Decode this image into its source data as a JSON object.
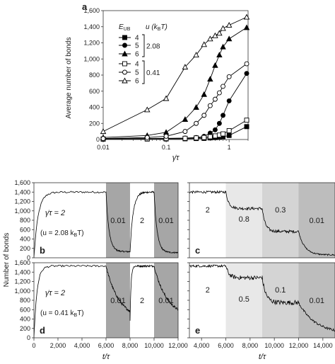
{
  "chart_data": [
    {
      "panel": "a",
      "type": "line",
      "xscale": "log",
      "xlim": [
        0.01,
        2
      ],
      "ylim": [
        0,
        1600
      ],
      "xlabel": "γ̇τ",
      "ylabel": "Average number of bonds",
      "xticks": [
        0.01,
        0.1,
        1
      ],
      "xtick_labels": [
        "0.01",
        "0.1",
        "1"
      ],
      "yticks": [
        0,
        200,
        400,
        600,
        800,
        1000,
        1200,
        1400,
        1600
      ],
      "ytick_labels": [
        "0",
        "200",
        "400",
        "600",
        "800",
        "1,000",
        "1,200",
        "1,400",
        "1,600"
      ],
      "legend": {
        "placement": "top-left",
        "header_e": "E",
        "header_e_sub": "UB",
        "header_u": "u (k",
        "header_u_sub": "B",
        "header_u_tail": "T)",
        "group_labels": [
          "2.08",
          "0.41"
        ]
      },
      "series": [
        {
          "name": "4",
          "group": "2.08",
          "marker": "square",
          "filled": true,
          "x": [
            0.01,
            0.05,
            0.1,
            0.2,
            0.3,
            0.4,
            0.5,
            0.6,
            0.7,
            0.8,
            1,
            1.9
          ],
          "y": [
            5,
            6,
            7,
            9,
            12,
            14,
            20,
            24,
            28,
            35,
            50,
            160
          ]
        },
        {
          "name": "5",
          "group": "2.08",
          "marker": "circle",
          "filled": true,
          "x": [
            0.01,
            0.05,
            0.1,
            0.2,
            0.3,
            0.4,
            0.5,
            0.6,
            0.7,
            0.8,
            1,
            1.9
          ],
          "y": [
            10,
            12,
            15,
            18,
            25,
            40,
            80,
            120,
            200,
            300,
            480,
            820
          ]
        },
        {
          "name": "6",
          "group": "2.08",
          "marker": "triangle",
          "filled": true,
          "x": [
            0.01,
            0.05,
            0.1,
            0.2,
            0.3,
            0.4,
            0.5,
            0.6,
            0.7,
            0.8,
            1,
            1.9
          ],
          "y": [
            25,
            50,
            90,
            250,
            400,
            560,
            750,
            920,
            1050,
            1150,
            1250,
            1390
          ]
        },
        {
          "name": "4",
          "group": "0.41",
          "marker": "square",
          "filled": false,
          "x": [
            0.01,
            0.05,
            0.1,
            0.2,
            0.3,
            0.4,
            0.5,
            0.6,
            0.7,
            0.8,
            1,
            1.9
          ],
          "y": [
            7,
            9,
            12,
            15,
            20,
            25,
            35,
            45,
            55,
            70,
            110,
            240
          ]
        },
        {
          "name": "5",
          "group": "0.41",
          "marker": "circle",
          "filled": false,
          "x": [
            0.01,
            0.05,
            0.1,
            0.2,
            0.3,
            0.4,
            0.5,
            0.6,
            0.7,
            0.8,
            1,
            1.9
          ],
          "y": [
            12,
            25,
            40,
            100,
            200,
            300,
            420,
            500,
            580,
            660,
            780,
            940
          ]
        },
        {
          "name": "6",
          "group": "0.41",
          "marker": "triangle",
          "filled": false,
          "x": [
            0.01,
            0.05,
            0.1,
            0.2,
            0.3,
            0.4,
            0.5,
            0.6,
            0.7,
            0.8,
            1,
            1.9
          ],
          "y": [
            100,
            370,
            510,
            900,
            1050,
            1180,
            1250,
            1290,
            1320,
            1380,
            1420,
            1520
          ]
        }
      ]
    },
    {
      "panel": "b",
      "type": "line",
      "xlim": [
        0,
        12000
      ],
      "ylim": [
        0,
        1600
      ],
      "yticks": [
        0,
        200,
        400,
        600,
        800,
        1000,
        1200,
        1400,
        1600
      ],
      "ytick_labels": [
        "0",
        "200",
        "400",
        "600",
        "800",
        "1,000",
        "1,200",
        "1,400",
        "1,600"
      ],
      "regions": [
        {
          "x0": 6000,
          "x1": 8000,
          "label": "0.01",
          "shade": "#a6a6a6"
        },
        {
          "x0": 8000,
          "x1": 10000,
          "label": "2",
          "shade": "none"
        },
        {
          "x0": 10000,
          "x1": 12000,
          "label": "0.01",
          "shade": "#a6a6a6"
        }
      ],
      "annotation_rate": "γ̇τ = 2",
      "annotation_u": "(u = 2.08 k",
      "annotation_u_sub": "B",
      "annotation_u_tail": "T)",
      "segments": [
        {
          "x0": 0,
          "x1": 6000,
          "kind": "rise",
          "from": 0,
          "to": 1400,
          "tau": 350,
          "noise": 20
        },
        {
          "x0": 6000,
          "x1": 8000,
          "kind": "decay",
          "from": 1400,
          "to": 130,
          "tau": 250,
          "noise": 15
        },
        {
          "x0": 8000,
          "x1": 10000,
          "kind": "rise",
          "from": 130,
          "to": 1400,
          "tau": 250,
          "noise": 20
        },
        {
          "x0": 10000,
          "x1": 12000,
          "kind": "decay",
          "from": 1400,
          "to": 110,
          "tau": 250,
          "noise": 15
        }
      ]
    },
    {
      "panel": "c",
      "type": "line",
      "xlim": [
        3000,
        15000
      ],
      "ylim": [
        0,
        1600
      ],
      "regions": [
        {
          "x0": 3000,
          "x1": 6000,
          "label": "2",
          "shade": "none"
        },
        {
          "x0": 6000,
          "x1": 9000,
          "label": "0.8",
          "shade": "#e8e8e8"
        },
        {
          "x0": 9000,
          "x1": 12000,
          "label": "0.3",
          "shade": "#d4d4d4"
        },
        {
          "x0": 12000,
          "x1": 15000,
          "label": "0.01",
          "shade": "#bdbdbd"
        }
      ],
      "segments": [
        {
          "x0": 3000,
          "x1": 6000,
          "kind": "flat",
          "from": 1400,
          "to": 1400,
          "tau": 100,
          "noise": 25
        },
        {
          "x0": 6000,
          "x1": 9000,
          "kind": "decay",
          "from": 1400,
          "to": 1050,
          "tau": 250,
          "noise": 30
        },
        {
          "x0": 9000,
          "x1": 12000,
          "kind": "decay",
          "from": 1050,
          "to": 560,
          "tau": 250,
          "noise": 30
        },
        {
          "x0": 12000,
          "x1": 15000,
          "kind": "decay",
          "from": 560,
          "to": 60,
          "tau": 500,
          "noise": 15
        }
      ]
    },
    {
      "panel": "d",
      "type": "line",
      "xlim": [
        0,
        12000
      ],
      "ylim": [
        0,
        1600
      ],
      "xlabel": "t/τ",
      "xticks": [
        0,
        2000,
        4000,
        6000,
        8000,
        10000,
        12000
      ],
      "xtick_labels": [
        "0",
        "2,000",
        "4,000",
        "6,000",
        "8,000",
        "10,000",
        "12,000"
      ],
      "yticks": [
        0,
        200,
        400,
        600,
        800,
        1000,
        1200,
        1400,
        1600
      ],
      "ytick_labels": [
        "0",
        "200",
        "400",
        "600",
        "800",
        "1,000",
        "1,200",
        "1,400",
        "1,600"
      ],
      "regions": [
        {
          "x0": 6000,
          "x1": 8000,
          "label": "0.01",
          "shade": "#a6a6a6"
        },
        {
          "x0": 8000,
          "x1": 10000,
          "label": "2",
          "shade": "none"
        },
        {
          "x0": 10000,
          "x1": 12000,
          "label": "0.01",
          "shade": "#a6a6a6"
        }
      ],
      "annotation_rate": "γ̇τ = 2",
      "annotation_u": "(u = 0.41 k",
      "annotation_u_sub": "B",
      "annotation_u_tail": "T)",
      "segments": [
        {
          "x0": 0,
          "x1": 6000,
          "kind": "rise",
          "from": 0,
          "to": 1530,
          "tau": 250,
          "noise": 20
        },
        {
          "x0": 6000,
          "x1": 8000,
          "kind": "decay",
          "from": 1530,
          "to": 380,
          "tau": 1100,
          "noise": 25
        },
        {
          "x0": 8000,
          "x1": 10000,
          "kind": "rise",
          "from": 380,
          "to": 1530,
          "tau": 80,
          "noise": 20
        },
        {
          "x0": 10000,
          "x1": 12000,
          "kind": "decay",
          "from": 1530,
          "to": 420,
          "tau": 1100,
          "noise": 25
        }
      ]
    },
    {
      "panel": "e",
      "type": "line",
      "xlim": [
        3000,
        15000
      ],
      "ylim": [
        0,
        1600
      ],
      "xlabel": "t/τ",
      "xticks": [
        4000,
        6000,
        8000,
        10000,
        12000,
        14000
      ],
      "xtick_labels": [
        "4,000",
        "6,000",
        "8,000",
        "10,000",
        "12,000",
        "14,000"
      ],
      "regions": [
        {
          "x0": 3000,
          "x1": 6000,
          "label": "2",
          "shade": "none"
        },
        {
          "x0": 6000,
          "x1": 9000,
          "label": "0.5",
          "shade": "#e8e8e8"
        },
        {
          "x0": 9000,
          "x1": 12000,
          "label": "0.1",
          "shade": "#d4d4d4"
        },
        {
          "x0": 12000,
          "x1": 15000,
          "label": "0.01",
          "shade": "#bdbdbd"
        }
      ],
      "segments": [
        {
          "x0": 3000,
          "x1": 6000,
          "kind": "flat",
          "from": 1530,
          "to": 1530,
          "tau": 100,
          "noise": 25
        },
        {
          "x0": 6000,
          "x1": 9000,
          "kind": "decay",
          "from": 1530,
          "to": 1280,
          "tau": 250,
          "noise": 45
        },
        {
          "x0": 9000,
          "x1": 12000,
          "kind": "decay",
          "from": 1280,
          "to": 750,
          "tau": 300,
          "noise": 50
        },
        {
          "x0": 12000,
          "x1": 15000,
          "kind": "decay",
          "from": 750,
          "to": 80,
          "tau": 1400,
          "noise": 25
        }
      ]
    }
  ],
  "shared_ylabel": "Number of bonds"
}
